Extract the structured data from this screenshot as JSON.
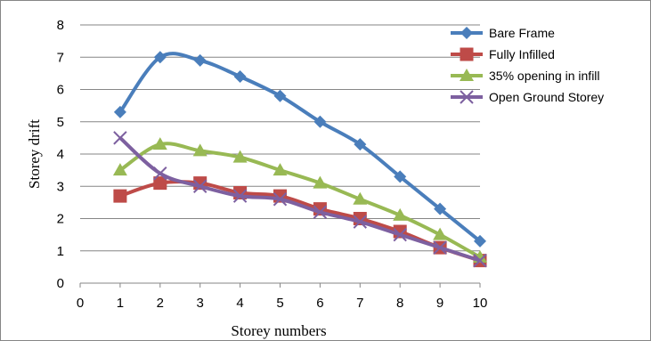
{
  "chart_data": {
    "type": "line",
    "title": "",
    "xlabel": "Storey numbers",
    "ylabel": "Storey drift",
    "xlim": [
      0,
      10
    ],
    "ylim": [
      0,
      8
    ],
    "x_ticks": [
      "0",
      "1",
      "2",
      "3",
      "4",
      "5",
      "6",
      "7",
      "8",
      "9",
      "10"
    ],
    "y_ticks": [
      "0",
      "1",
      "2",
      "3",
      "4",
      "5",
      "6",
      "7",
      "8"
    ],
    "grid": "horizontal",
    "legend_position": "top-right",
    "x": [
      1,
      2,
      3,
      4,
      5,
      6,
      7,
      8,
      9,
      10
    ],
    "series": [
      {
        "name": "Bare Frame",
        "color": "#4a7ebb",
        "marker": "diamond",
        "values": [
          5.3,
          7.0,
          6.9,
          6.4,
          5.8,
          5.0,
          4.3,
          3.3,
          2.3,
          1.3
        ]
      },
      {
        "name": "Fully Infilled",
        "color": "#be4b48",
        "marker": "square",
        "values": [
          2.7,
          3.1,
          3.1,
          2.8,
          2.7,
          2.3,
          2.0,
          1.6,
          1.1,
          0.7
        ]
      },
      {
        "name": "35% opening in infill",
        "color": "#98b954",
        "marker": "triangle",
        "values": [
          3.5,
          4.3,
          4.1,
          3.9,
          3.5,
          3.1,
          2.6,
          2.1,
          1.5,
          0.8
        ]
      },
      {
        "name": "Open Ground Storey",
        "color": "#7d60a0",
        "marker": "x",
        "values": [
          4.5,
          3.4,
          3.0,
          2.7,
          2.6,
          2.2,
          1.9,
          1.5,
          1.1,
          0.7
        ]
      }
    ]
  }
}
